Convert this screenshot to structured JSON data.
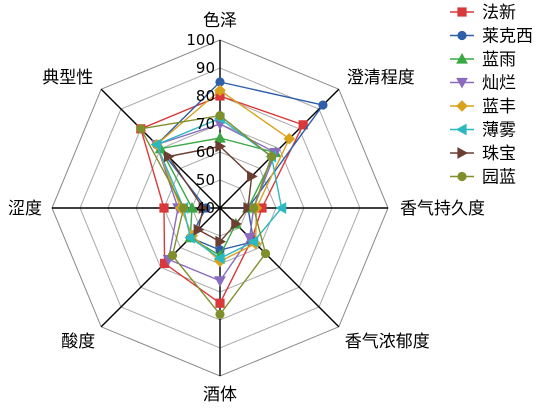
{
  "chart_data": {
    "type": "radar",
    "axes": [
      "色泽",
      "澄清程度",
      "香气持久度",
      "香气浓郁度",
      "酒体",
      "酸度",
      "涩度",
      "典型性"
    ],
    "rticks": [
      40,
      50,
      60,
      70,
      80,
      90,
      100
    ],
    "rlim": [
      40,
      100
    ],
    "grid": true,
    "legend_position": "right",
    "series": [
      {
        "name": "法新",
        "color": "#d9393b",
        "marker": "square",
        "values": [
          80,
          82,
          55,
          56,
          74,
          68,
          60,
          80
        ]
      },
      {
        "name": "莱克西",
        "color": "#2e5fa8",
        "marker": "circle",
        "values": [
          85,
          92,
          50,
          57,
          55,
          55,
          45,
          72
        ]
      },
      {
        "name": "蓝雨",
        "color": "#3aa843",
        "marker": "triangle",
        "values": [
          65,
          68,
          50,
          48,
          57,
          55,
          50,
          70
        ]
      },
      {
        "name": "灿烂",
        "color": "#8a6bbf",
        "marker": "triangle-down",
        "values": [
          70,
          68,
          52,
          55,
          66,
          66,
          55,
          72
        ]
      },
      {
        "name": "蓝丰",
        "color": "#d9a21c",
        "marker": "diamond",
        "values": [
          82,
          75,
          53,
          58,
          59,
          54,
          54,
          72
        ]
      },
      {
        "name": "薄雾",
        "color": "#2cb8c0",
        "marker": "triangle-left",
        "values": [
          72,
          66,
          62,
          57,
          58,
          55,
          53,
          72
        ]
      },
      {
        "name": "珠宝",
        "color": "#6b3e32",
        "marker": "triangle-right",
        "values": [
          62,
          56,
          50,
          48,
          52,
          51,
          46,
          66
        ]
      },
      {
        "name": "园蓝",
        "color": "#7f8f2c",
        "marker": "circle",
        "values": [
          73,
          66,
          52,
          63,
          78,
          64,
          53,
          80
        ]
      }
    ]
  }
}
